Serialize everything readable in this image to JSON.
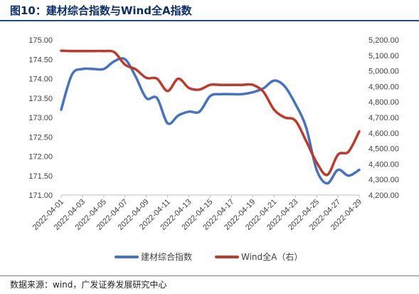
{
  "title": "图10：建材综合指数与Wind全A指数",
  "source": "数据来源：wind，广发证券发展研究中心",
  "chart_data": {
    "type": "line",
    "x": [
      "2022-04-01",
      "2022-04-02",
      "2022-04-03",
      "2022-04-04",
      "2022-04-05",
      "2022-04-06",
      "2022-04-07",
      "2022-04-08",
      "2022-04-09",
      "2022-04-10",
      "2022-04-11",
      "2022-04-12",
      "2022-04-13",
      "2022-04-14",
      "2022-04-15",
      "2022-04-16",
      "2022-04-17",
      "2022-04-18",
      "2022-04-19",
      "2022-04-20",
      "2022-04-21",
      "2022-04-22",
      "2022-04-23",
      "2022-04-24",
      "2022-04-25",
      "2022-04-26",
      "2022-04-27",
      "2022-04-28",
      "2022-04-29"
    ],
    "xticks": [
      "2022-04-01",
      "2022-04-03",
      "2022-04-05",
      "2022-04-07",
      "2022-04-09",
      "2022-04-11",
      "2022-04-13",
      "2022-04-15",
      "2022-04-17",
      "2022-04-19",
      "2022-04-21",
      "2022-04-23",
      "2022-04-25",
      "2022-04-27",
      "2022-04-29"
    ],
    "series": [
      {
        "name": "建材综合指数",
        "axis": "left",
        "color": "#4472c4",
        "values": [
          173.2,
          174.1,
          174.25,
          174.25,
          174.25,
          174.45,
          174.5,
          174.05,
          173.5,
          173.5,
          172.85,
          173.05,
          173.15,
          173.15,
          173.55,
          173.6,
          173.6,
          173.6,
          173.65,
          173.75,
          173.95,
          173.8,
          173.35,
          172.75,
          171.65,
          171.3,
          171.65,
          171.5,
          171.65
        ]
      },
      {
        "name": "Wind全A（右）",
        "axis": "right",
        "color": "#c0392b",
        "values": [
          5130,
          5128,
          5128,
          5128,
          5128,
          5120,
          5040,
          5010,
          4955,
          4950,
          4870,
          4950,
          4890,
          4880,
          4910,
          4910,
          4910,
          4910,
          4910,
          4865,
          4750,
          4700,
          4680,
          4550,
          4410,
          4330,
          4460,
          4480,
          4610
        ]
      }
    ],
    "y_left": {
      "min": 171.0,
      "max": 175.0,
      "ticks": [
        "171.00",
        "171.50",
        "172.00",
        "172.50",
        "173.00",
        "173.50",
        "174.00",
        "174.50",
        "175.00"
      ]
    },
    "y_right": {
      "min": 4200,
      "max": 5200,
      "ticks": [
        "4,200.00",
        "4,300.00",
        "4,400.00",
        "4,500.00",
        "4,600.00",
        "4,700.00",
        "4,800.00",
        "4,900.00",
        "5,000.00",
        "5,100.00",
        "5,200.00"
      ]
    },
    "grid": false,
    "legend_position": "bottom"
  }
}
